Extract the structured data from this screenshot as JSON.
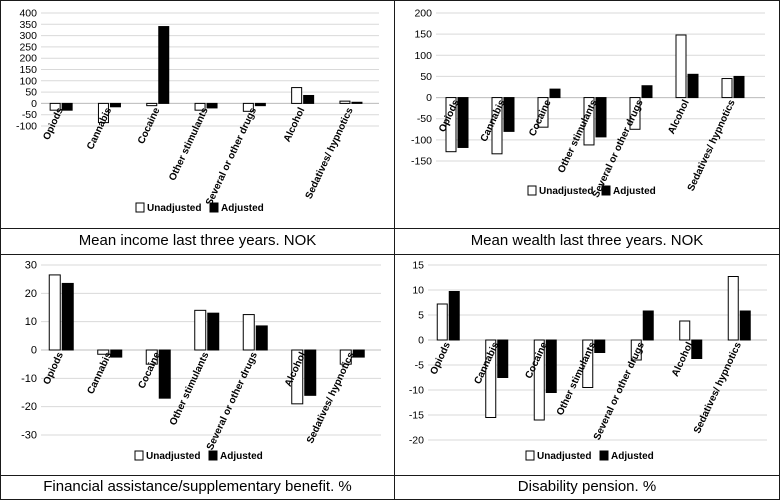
{
  "captions": [
    "Mean income last three years. NOK",
    "Mean wealth last three years. NOK",
    "Financial assistance/supplementary benefit. %",
    "Disability pension. %"
  ],
  "legend": {
    "unadjusted": "Unadjusted",
    "adjusted": "Adjusted"
  },
  "colors": {
    "unadjusted": "#ffffff",
    "adjusted": "#000000",
    "gridline": "#d9d9d9",
    "axis": "#bfbfbf",
    "border": "#1a1a1a"
  },
  "chart_data": [
    {
      "type": "bar",
      "title": "Mean income last three years. NOK",
      "categories": [
        "Opiods",
        "Cannabis",
        "Cocaine",
        "Other stimulants",
        "Several or other drugs",
        "Alcohol",
        "Sedatives/ hypnotics"
      ],
      "series": [
        {
          "name": "Unadjusted",
          "values": [
            -30,
            -85,
            -10,
            -30,
            -35,
            70,
            10
          ]
        },
        {
          "name": "Adjusted",
          "values": [
            -30,
            -15,
            340,
            -20,
            -10,
            35,
            5
          ]
        }
      ],
      "ylim": [
        -100,
        400
      ],
      "yticks": [
        -100,
        -50,
        0,
        50,
        100,
        150,
        200,
        250,
        300,
        350,
        400
      ],
      "ytick_labels": [
        "-100",
        "-50",
        "0",
        "50",
        "100",
        "150",
        "200",
        "250",
        "300",
        "350",
        "400"
      ],
      "grid": true,
      "legend_position": "bottom"
    },
    {
      "type": "bar",
      "title": "Mean wealth last three years. NOK",
      "categories": [
        "Opiods",
        "Cannabis",
        "Cocaine",
        "Other stimulants",
        "Several or other drugs",
        "Alcohol",
        "Sedatives/ hypnotics"
      ],
      "series": [
        {
          "name": "Unadjusted",
          "values": [
            -128,
            -133,
            -70,
            -112,
            -75,
            148,
            45
          ]
        },
        {
          "name": "Adjusted",
          "values": [
            -118,
            -80,
            20,
            -93,
            28,
            55,
            50
          ]
        }
      ],
      "ylim": [
        -150,
        200
      ],
      "yticks": [
        -150,
        -100,
        -50,
        0,
        50,
        100,
        150,
        200
      ],
      "ytick_labels": [
        "-150",
        "-100",
        "-50",
        "0",
        "50",
        "100",
        "150",
        "200"
      ],
      "grid": true,
      "legend_position": "bottom"
    },
    {
      "type": "bar",
      "title": "Financial assistance/supplementary benefit. %",
      "categories": [
        "Opiods",
        "Cannabis",
        "Cocaine",
        "Other stimulants",
        "Several or other drugs",
        "Alcohol",
        "Sedatives/ hypnotics"
      ],
      "series": [
        {
          "name": "Unadjusted",
          "values": [
            26.5,
            -1.5,
            -5,
            14,
            12.5,
            -19,
            -5
          ]
        },
        {
          "name": "Adjusted",
          "values": [
            23.5,
            -2.5,
            -17,
            13,
            8.5,
            -16,
            -2.5
          ]
        }
      ],
      "ylim": [
        -30,
        30
      ],
      "yticks": [
        -30,
        -20,
        -10,
        0,
        10,
        20,
        30
      ],
      "ytick_labels": [
        "-30",
        "-20",
        "-10",
        "0",
        "10",
        "20",
        "30"
      ],
      "grid": true,
      "legend_position": "bottom"
    },
    {
      "type": "bar",
      "title": "Disability pension. %",
      "categories": [
        "Opiods",
        "Cannabis",
        "Cocaine",
        "Other stimulants",
        "Several or other drugs",
        "Alcohol",
        "Sedatives/ hypnotics"
      ],
      "series": [
        {
          "name": "Unadjusted",
          "values": [
            7.2,
            -15.5,
            -16,
            -9.5,
            -4,
            3.8,
            12.7
          ]
        },
        {
          "name": "Adjusted",
          "values": [
            9.7,
            -7.5,
            -10.5,
            -2.5,
            5.8,
            -3.7,
            5.8
          ]
        }
      ],
      "ylim": [
        -20,
        15
      ],
      "yticks": [
        -20,
        -15,
        -10,
        -5,
        0,
        5,
        10,
        15
      ],
      "ytick_labels": [
        "-20",
        "-15",
        "-10",
        "-5",
        "0",
        "5",
        "10",
        "15"
      ],
      "grid": true,
      "legend_position": "bottom"
    }
  ]
}
